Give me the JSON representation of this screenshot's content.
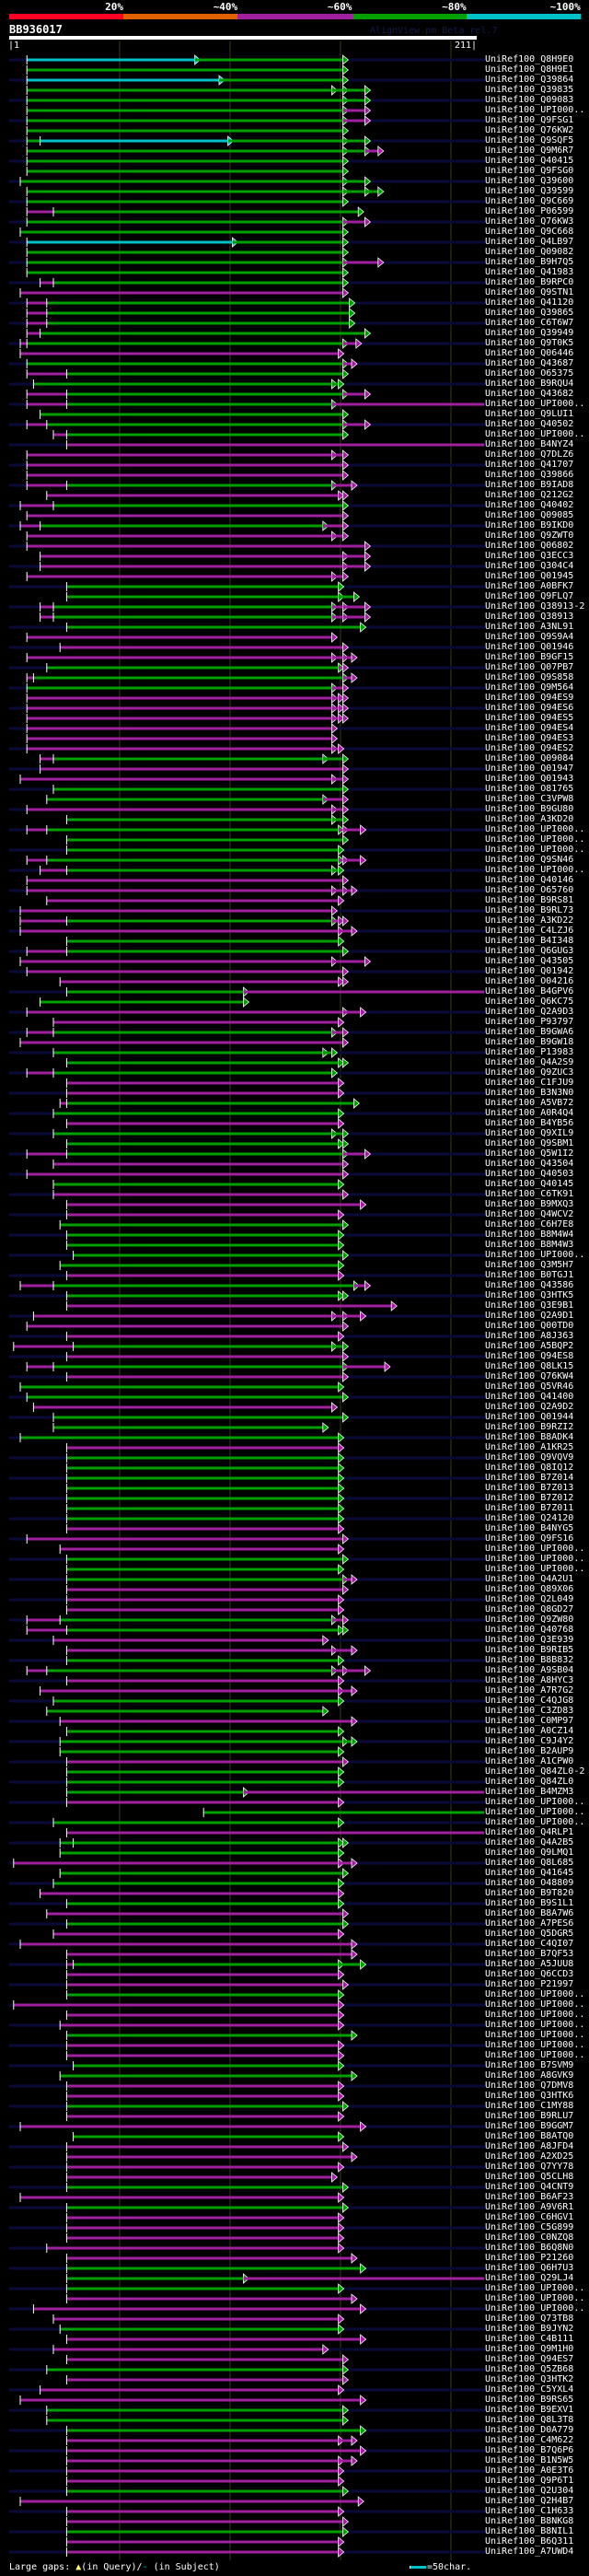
{
  "header": {
    "identity_scale": [
      {
        "label": "20%",
        "color": "#ff0022"
      },
      {
        "label": "~40%",
        "color": "#e06000"
      },
      {
        "label": "~60%",
        "color": "#a020a0"
      },
      {
        "label": "~80%",
        "color": "#00a000"
      },
      {
        "label": "~100%",
        "color": "#00c0c8"
      }
    ],
    "query_name": "BB936017",
    "watermark": "AlignView.pm Beta rel.7",
    "ruler_start": "|1",
    "ruler_end": "211|"
  },
  "query_length": 211,
  "colors": {
    "g": "#00a000",
    "m": "#a020a0",
    "c": "#00c0c8"
  },
  "rows": [
    {
      "label": "UniRef100_Q8H9E0",
      "hsp": "c9-85> g85-152>"
    },
    {
      "label": "UniRef100_Q8H9E1",
      "hsp": "g9-152>"
    },
    {
      "label": "UniRef100_Q39864",
      "hsp": "c9-96> g96-152>"
    },
    {
      "label": "UniRef100_Q39835",
      "hsp": "g9-147> g147-152> g152-162>"
    },
    {
      "label": "UniRef100_Q09083",
      "hsp": "g9-152> g152-162>"
    },
    {
      "label": "UniRef100_UPI000..",
      "hsp": "g9-152> m152-162>"
    },
    {
      "label": "UniRef100_Q9FSG1",
      "hsp": "g9-152> m152-162>"
    },
    {
      "label": "UniRef100_Q76KW2",
      "hsp": "g9-152>"
    },
    {
      "label": "UniRef100_Q9SQF5",
      "hsp": "g9-15 c15-100> g100-152> g152-162>"
    },
    {
      "label": "UniRef100_Q9M6R7",
      "hsp": "g9-152> g152-162> m162-168>"
    },
    {
      "label": "UniRef100_Q40415",
      "hsp": "g9-152>"
    },
    {
      "label": "UniRef100_Q9FSG0",
      "hsp": "g9-152>"
    },
    {
      "label": "UniRef100_Q39600",
      "hsp": "g6-152> g152-162>"
    },
    {
      "label": "UniRef100_Q39599",
      "hsp": "g9-152> g152-162> g162-168>"
    },
    {
      "label": "UniRef100_Q9C669",
      "hsp": "g9-152>"
    },
    {
      "label": "UniRef100_P06599",
      "hsp": "m9-21 g21-159>"
    },
    {
      "label": "UniRef100_Q76KW3",
      "hsp": "g9-152> m152-162>"
    },
    {
      "label": "UniRef100_Q9C668",
      "hsp": "g6-152>"
    },
    {
      "label": "UniRef100_Q4LB97",
      "hsp": "c9-102> g102-152>"
    },
    {
      "label": "UniRef100_Q09082",
      "hsp": "g9-152>"
    },
    {
      "label": "UniRef100_B9H7Q5",
      "hsp": "g9-152> m152-168>"
    },
    {
      "label": "UniRef100_Q41983",
      "hsp": "g9-152>"
    },
    {
      "label": "UniRef100_B9RPC0",
      "hsp": "m15-21 g21-152>"
    },
    {
      "label": "UniRef100_Q9STN1",
      "hsp": "m6-152>"
    },
    {
      "label": "UniRef100_Q41120",
      "hsp": "m9-18 g18-155>"
    },
    {
      "label": "UniRef100_Q39865",
      "hsp": "m9-18 g18-155>"
    },
    {
      "label": "UniRef100_C6T6W7",
      "hsp": "m9-18 g18-155>"
    },
    {
      "label": "UniRef100_Q39949",
      "hsp": "m9-15 g15-162>"
    },
    {
      "label": "UniRef100_Q9T0K5",
      "hsp": "m6-9 g9-152> m152-158>"
    },
    {
      "label": "UniRef100_Q06446",
      "hsp": "m6-150>"
    },
    {
      "label": "UniRef100_Q43687",
      "hsp": "g9-152> m152-156>"
    },
    {
      "label": "UniRef100_O65375",
      "hsp": "m9-27 g27-152>"
    },
    {
      "label": "UniRef100_B9RQU4",
      "hsp": "g12-147> g147-150>"
    },
    {
      "label": "UniRef100_Q43682",
      "hsp": "m9-27 g27-152> m152-162>"
    },
    {
      "label": "UniRef100_UPI000..",
      "hsp": "m9-27 g27-147> m147-216"
    },
    {
      "label": "UniRef100_Q9LUI1",
      "hsp": "g15-152>"
    },
    {
      "label": "UniRef100_Q40502",
      "hsp": "m9-18 g18-152> m152-162>"
    },
    {
      "label": "UniRef100_UPI000..",
      "hsp": "m21-27 g27-152>"
    },
    {
      "label": "UniRef100_B4NYZ4",
      "hsp": "m27-216"
    },
    {
      "label": "UniRef100_Q7DLZ6",
      "hsp": "m9-147> m147-152>"
    },
    {
      "label": "UniRef100_Q41707",
      "hsp": "m9-152>"
    },
    {
      "label": "UniRef100_Q39866",
      "hsp": "m9-152>"
    },
    {
      "label": "UniRef100_B9IAD8",
      "hsp": "m9-27 g27-147> m147-156>"
    },
    {
      "label": "UniRef100_Q212G2",
      "hsp": "m18-150> m150-152>"
    },
    {
      "label": "UniRef100_Q40402",
      "hsp": "m6-21 g21-152>"
    },
    {
      "label": "UniRef100_Q09085",
      "hsp": "m9-152>"
    },
    {
      "label": "UniRef100_B9IKD0",
      "hsp": "m6-15 g15-143> m143-152>"
    },
    {
      "label": "UniRef100_Q9ZWT0",
      "hsp": "m9-147> m147-152>"
    },
    {
      "label": "UniRef100_Q06802",
      "hsp": "m9-162>"
    },
    {
      "label": "UniRef100_Q3ECC3",
      "hsp": "m15-152> m152-162>"
    },
    {
      "label": "UniRef100_Q304C4",
      "hsp": "m15-152> m152-162>"
    },
    {
      "label": "UniRef100_Q01945",
      "hsp": "m9-147> m147-152>"
    },
    {
      "label": "UniRef100_A0BFK7",
      "hsp": "g27-150>"
    },
    {
      "label": "UniRef100_Q9FLQ7",
      "hsp": "g27-150> g150-157>"
    },
    {
      "label": "UniRef100_Q38913-2",
      "hsp": "m15-21 g21-147> m147-152> m152-162>"
    },
    {
      "label": "UniRef100_Q38913",
      "hsp": "m15-21 g21-147> m147-152> m152-162>"
    },
    {
      "label": "UniRef100_A3NL91",
      "hsp": "g27-160>"
    },
    {
      "label": "UniRef100_Q9S9A4",
      "hsp": "m9-147>"
    },
    {
      "label": "UniRef100_Q01946",
      "hsp": "m24-152>"
    },
    {
      "label": "UniRef100_B9GF15",
      "hsp": "m9-147> m147-152> m152-156>"
    },
    {
      "label": "UniRef100_Q07PB7",
      "hsp": "g18-150> m150-152>"
    },
    {
      "label": "UniRef100_Q9S858",
      "hsp": "m9-12 g12-152> m152-156>"
    },
    {
      "label": "UniRef100_Q9M564",
      "hsp": "g9-147> m147-152>"
    },
    {
      "label": "UniRef100_Q94ES9",
      "hsp": "m9-147> m147-150> m150-152>"
    },
    {
      "label": "UniRef100_Q94ES6",
      "hsp": "m9-147> m147-150> m150-152>"
    },
    {
      "label": "UniRef100_Q94ES5",
      "hsp": "m9-147> m147-150> m150-152>"
    },
    {
      "label": "UniRef100_Q94ES4",
      "hsp": "m9-147>"
    },
    {
      "label": "UniRef100_Q94ES3",
      "hsp": "m9-147>"
    },
    {
      "label": "UniRef100_Q94ES2",
      "hsp": "m9-147> m147-150>"
    },
    {
      "label": "UniRef100_Q09084",
      "hsp": "m15-21 g21-143> g143-152>"
    },
    {
      "label": "UniRef100_Q01947",
      "hsp": "m15-152>"
    },
    {
      "label": "UniRef100_Q01943",
      "hsp": "m6-147> m147-152>"
    },
    {
      "label": "UniRef100_O81765",
      "hsp": "g21-152>"
    },
    {
      "label": "UniRef100_C3VPW8",
      "hsp": "g18-143> m143-152>"
    },
    {
      "label": "UniRef100_B9GU80",
      "hsp": "m9-147> m147-152>"
    },
    {
      "label": "UniRef100_A3KD20",
      "hsp": "g27-147> g147-152>"
    },
    {
      "label": "UniRef100_UPI000..",
      "hsp": "m9-18 g18-150> m150-152> m152-160>"
    },
    {
      "label": "UniRef100_UPI000..",
      "hsp": "g27-152>"
    },
    {
      "label": "UniRef100_UPI000..",
      "hsp": "g27-150>"
    },
    {
      "label": "UniRef100_Q9SN46",
      "hsp": "m9-18 g18-150> m150-152> m152-160>"
    },
    {
      "label": "UniRef100_UPI000..",
      "hsp": "m15-27 g27-147> g147-150>"
    },
    {
      "label": "UniRef100_Q40146",
      "hsp": "m9-152>"
    },
    {
      "label": "UniRef100_O65760",
      "hsp": "m9-147> m147-152> m152-156>"
    },
    {
      "label": "UniRef100_B9RS81",
      "hsp": "m18-150>"
    },
    {
      "label": "UniRef100_B9RL73",
      "hsp": "m6-147>"
    },
    {
      "label": "UniRef100_A3KD22",
      "hsp": "m6-27 g27-147> m147-150> m150-152>"
    },
    {
      "label": "UniRef100_C4LZJ6",
      "hsp": "m6-150> m150-156>"
    },
    {
      "label": "UniRef100_B4I348",
      "hsp": "g27-150>"
    },
    {
      "label": "UniRef100_Q6GUG3",
      "hsp": "m9-27 g27-152>"
    },
    {
      "label": "UniRef100_Q43505",
      "hsp": "m6-147> m147-162>"
    },
    {
      "label": "UniRef100_Q01942",
      "hsp": "m9-152>"
    },
    {
      "label": "UniRef100_O04216",
      "hsp": "m24-150> m150-152>"
    },
    {
      "label": "UniRef100_B4GPV6",
      "hsp": "g27-107> m107-216"
    },
    {
      "label": "UniRef100_Q6KC75",
      "hsp": "g15-107>"
    },
    {
      "label": "UniRef100_Q2A9D3",
      "hsp": "m9-152> m152-160>"
    },
    {
      "label": "UniRef100_P93797",
      "hsp": "m21-150>"
    },
    {
      "label": "UniRef100_B9GWA6",
      "hsp": "m9-21 g21-147> m147-152>"
    },
    {
      "label": "UniRef100_B9GW18",
      "hsp": "m6-152>"
    },
    {
      "label": "UniRef100_P13983",
      "hsp": "g21-143> g143-147>"
    },
    {
      "label": "UniRef100_Q4A2S9",
      "hsp": "g27-150> g150-152>"
    },
    {
      "label": "UniRef100_Q9ZUC3",
      "hsp": "m9-21 g21-147>"
    },
    {
      "label": "UniRef100_C1FJU9",
      "hsp": "m27-150>"
    },
    {
      "label": "UniRef100_B3N3N0",
      "hsp": "m27-150>"
    },
    {
      "label": "UniRef100_A5VB72",
      "hsp": "m24-27 g27-157>"
    },
    {
      "label": "UniRef100_A0R4Q4",
      "hsp": "g21-150>"
    },
    {
      "label": "UniRef100_B4YB56",
      "hsp": "m27-150>"
    },
    {
      "label": "UniRef100_Q9XIL9",
      "hsp": "g21-147> g147-152>"
    },
    {
      "label": "UniRef100_Q9SBM1",
      "hsp": "g27-150> g150-152>"
    },
    {
      "label": "UniRef100_Q5W1I2",
      "hsp": "m9-27 g27-152> m152-162>"
    },
    {
      "label": "UniRef100_Q43504",
      "hsp": "m21-152>"
    },
    {
      "label": "UniRef100_Q40503",
      "hsp": "m9-152>"
    },
    {
      "label": "UniRef100_Q40145",
      "hsp": "g21-150>"
    },
    {
      "label": "UniRef100_C6TK91",
      "hsp": "m21-152>"
    },
    {
      "label": "UniRef100_B9MXQ3",
      "hsp": "m27-160>"
    },
    {
      "label": "UniRef100_Q4WCV2",
      "hsp": "m27-150>"
    },
    {
      "label": "UniRef100_C6H7E8",
      "hsp": "g24-152>"
    },
    {
      "label": "UniRef100_B8M4W4",
      "hsp": "g27-150>"
    },
    {
      "label": "UniRef100_B8M4W3",
      "hsp": "g27-150>"
    },
    {
      "label": "UniRef100_UPI000..",
      "hsp": "g30-152>"
    },
    {
      "label": "UniRef100_Q3M5H7",
      "hsp": "g24-150>"
    },
    {
      "label": "UniRef100_B0TGJ1",
      "hsp": "m27-150>"
    },
    {
      "label": "UniRef100_Q43586",
      "hsp": "m6-21 g21-157> m157-162>"
    },
    {
      "label": "UniRef100_Q3HTK5",
      "hsp": "g27-150> g150-152>"
    },
    {
      "label": "UniRef100_Q3E9B1",
      "hsp": "m27-174>"
    },
    {
      "label": "UniRef100_Q2A9D1",
      "hsp": "m12-147> m147-152> m152-160>"
    },
    {
      "label": "UniRef100_Q00TD0",
      "hsp": "m9-152>"
    },
    {
      "label": "UniRef100_A8J363",
      "hsp": "m27-150>"
    },
    {
      "label": "UniRef100_A5BQP2",
      "hsp": "m3-30 g30-147> g147-152>"
    },
    {
      "label": "UniRef100_Q94ES8",
      "hsp": "m27-152>"
    },
    {
      "label": "UniRef100_Q8LK15",
      "hsp": "m9-21 g21-152> m152-171>"
    },
    {
      "label": "UniRef100_Q76KW4",
      "hsp": "m27-152>"
    },
    {
      "label": "UniRef100_Q5VR46",
      "hsp": "g6-150>"
    },
    {
      "label": "UniRef100_Q41400",
      "hsp": "g9-152>"
    },
    {
      "label": "UniRef100_Q2A9D2",
      "hsp": "m12-147>"
    },
    {
      "label": "UniRef100_Q01944",
      "hsp": "g21-152>"
    },
    {
      "label": "UniRef100_B9RZI2",
      "hsp": "g21-143>"
    },
    {
      "label": "UniRef100_B8ADK4",
      "hsp": "g6-150>"
    },
    {
      "label": "UniRef100_A1KR25",
      "hsp": "m27-150>"
    },
    {
      "label": "UniRef100_Q9VQV9",
      "hsp": "g27-150>"
    },
    {
      "label": "UniRef100_Q8IQ12",
      "hsp": "g27-150>"
    },
    {
      "label": "UniRef100_B7Z014",
      "hsp": "g27-150>"
    },
    {
      "label": "UniRef100_B7Z013",
      "hsp": "g27-150>"
    },
    {
      "label": "UniRef100_B7Z012",
      "hsp": "g27-150>"
    },
    {
      "label": "UniRef100_B7Z011",
      "hsp": "g27-150>"
    },
    {
      "label": "UniRef100_Q24120",
      "hsp": "g27-150>"
    },
    {
      "label": "UniRef100_B4NYG5",
      "hsp": "m27-150>"
    },
    {
      "label": "UniRef100_Q9FS16",
      "hsp": "m9-152>"
    },
    {
      "label": "UniRef100_UPI000..",
      "hsp": "m24-150>"
    },
    {
      "label": "UniRef100_UPI000..",
      "hsp": "g27-152>"
    },
    {
      "label": "UniRef100_UPI000..",
      "hsp": "g27-150>"
    },
    {
      "label": "UniRef100_Q4A2U1",
      "hsp": "g27-152> m152-156>"
    },
    {
      "label": "UniRef100_Q89X06",
      "hsp": "m27-152>"
    },
    {
      "label": "UniRef100_Q2L049",
      "hsp": "m27-150>"
    },
    {
      "label": "UniRef100_Q8GD27",
      "hsp": "m27-150>"
    },
    {
      "label": "UniRef100_Q9ZW80",
      "hsp": "m9-24 g24-147> m147-152>"
    },
    {
      "label": "UniRef100_Q40768",
      "hsp": "m9-27 g27-150> g150-152>"
    },
    {
      "label": "UniRef100_Q3E939",
      "hsp": "m21-143>"
    },
    {
      "label": "UniRef100_B9RIB5",
      "hsp": "m27-147> m147-156>"
    },
    {
      "label": "UniRef100_B8B832",
      "hsp": "g27-150>"
    },
    {
      "label": "UniRef100_A9SB04",
      "hsp": "m9-18 g18-147> m147-152> m152-162>"
    },
    {
      "label": "UniRef100_A8HYC3",
      "hsp": "m27-150>"
    },
    {
      "label": "UniRef100_A7R7G2",
      "hsp": "m15-150> m150-156>"
    },
    {
      "label": "UniRef100_C4QJG8",
      "hsp": "g21-150>"
    },
    {
      "label": "UniRef100_C3ZD83",
      "hsp": "g18-143>"
    },
    {
      "label": "UniRef100_C0MP97",
      "hsp": "m24-156>"
    },
    {
      "label": "UniRef100_A0CZ14",
      "hsp": "g27-150>"
    },
    {
      "label": "UniRef100_C9J4Y2",
      "hsp": "g24-152> g152-156>"
    },
    {
      "label": "UniRef100_B2AUP9",
      "hsp": "g24-150>"
    },
    {
      "label": "UniRef100_A1CPW0",
      "hsp": "m27-152>"
    },
    {
      "label": "UniRef100_Q84ZL0-2",
      "hsp": "g27-150>"
    },
    {
      "label": "UniRef100_Q84ZL0",
      "hsp": "g27-150>"
    },
    {
      "label": "UniRef100_B4MZM3",
      "hsp": "g27-107> m107-216"
    },
    {
      "label": "UniRef100_UPI000..",
      "hsp": "m27-150>"
    },
    {
      "label": "UniRef100_UPI000..",
      "hsp": "g89-216"
    },
    {
      "label": "UniRef100_UPI000..",
      "hsp": "g21-150>"
    },
    {
      "label": "UniRef100_Q4RLP1",
      "hsp": "m27-216"
    },
    {
      "label": "UniRef100_Q4A2B5",
      "hsp": "g24-30 g30-150> g150-152>"
    },
    {
      "label": "UniRef100_Q9LMQ1",
      "hsp": "g24-150>"
    },
    {
      "label": "UniRef100_Q8L685",
      "hsp": "m3-150> m150-156>"
    },
    {
      "label": "UniRef100_Q41645",
      "hsp": "g24-152>"
    },
    {
      "label": "UniRef100_O48809",
      "hsp": "g21-150>"
    },
    {
      "label": "UniRef100_B9T820",
      "hsp": "m15-150>"
    },
    {
      "label": "UniRef100_B9S1L1",
      "hsp": "g27-150>"
    },
    {
      "label": "UniRef100_B8A7W6",
      "hsp": "m18-152>"
    },
    {
      "label": "UniRef100_A7PES6",
      "hsp": "g27-152>"
    },
    {
      "label": "UniRef100_Q5DGR5",
      "hsp": "m21-150>"
    },
    {
      "label": "UniRef100_C4QI07",
      "hsp": "m6-156>"
    },
    {
      "label": "UniRef100_B7QF53",
      "hsp": "m27-156>"
    },
    {
      "label": "UniRef100_A5JUU8",
      "hsp": "m27-30 g30-150> g150-160>"
    },
    {
      "label": "UniRef100_Q6CCD3",
      "hsp": "m27-150>"
    },
    {
      "label": "UniRef100_P21997",
      "hsp": "m27-152>"
    },
    {
      "label": "UniRef100_UPI000..",
      "hsp": "g27-150>"
    },
    {
      "label": "UniRef100_UPI000..",
      "hsp": "m3-150>"
    },
    {
      "label": "UniRef100_UPI000..",
      "hsp": "m27-150>"
    },
    {
      "label": "UniRef100_UPI000..",
      "hsp": "m24-150>"
    },
    {
      "label": "UniRef100_UPI000..",
      "hsp": "g27-156>"
    },
    {
      "label": "UniRef100_UPI000..",
      "hsp": "m27-150>"
    },
    {
      "label": "UniRef100_UPI000..",
      "hsp": "m27-150>"
    },
    {
      "label": "UniRef100_B7SVM9",
      "hsp": "g30-150>"
    },
    {
      "label": "UniRef100_A8GVK9",
      "hsp": "g24-156>"
    },
    {
      "label": "UniRef100_Q7DMV8",
      "hsp": "m27-150>"
    },
    {
      "label": "UniRef100_Q3HTK6",
      "hsp": "m27-150>"
    },
    {
      "label": "UniRef100_C1MY88",
      "hsp": "g27-152>"
    },
    {
      "label": "UniRef100_B9RLU7",
      "hsp": "m27-150>"
    },
    {
      "label": "UniRef100_B9GGM7",
      "hsp": "m6-160>"
    },
    {
      "label": "UniRef100_B8ATQ0",
      "hsp": "g30-150>"
    },
    {
      "label": "UniRef100_A8JFD4",
      "hsp": "m27-152>"
    },
    {
      "label": "UniRef100_A2XD25",
      "hsp": "m27-156>"
    },
    {
      "label": "UniRef100_Q7YY78",
      "hsp": "m27-150>"
    },
    {
      "label": "UniRef100_Q5CLH8",
      "hsp": "m27-147>"
    },
    {
      "label": "UniRef100_Q4CNT9",
      "hsp": "g27-152>"
    },
    {
      "label": "UniRef100_B6AF23",
      "hsp": "m6-150>"
    },
    {
      "label": "UniRef100_A9V6R1",
      "hsp": "g27-152>"
    },
    {
      "label": "UniRef100_C6HGV1",
      "hsp": "m27-150>"
    },
    {
      "label": "UniRef100_C5G899",
      "hsp": "m27-150>"
    },
    {
      "label": "UniRef100_C0NZQ8",
      "hsp": "m27-150>"
    },
    {
      "label": "UniRef100_B6Q8N0",
      "hsp": "m18-150>"
    },
    {
      "label": "UniRef100_P21260",
      "hsp": "m27-156>"
    },
    {
      "label": "UniRef100_Q6H7U3",
      "hsp": "g27-160>"
    },
    {
      "label": "UniRef100_Q29LJ4",
      "hsp": "g27-107> m107-216"
    },
    {
      "label": "UniRef100_UPI000..",
      "hsp": "g27-150>"
    },
    {
      "label": "UniRef100_UPI000..",
      "hsp": "m27-156>"
    },
    {
      "label": "UniRef100_UPI000..",
      "hsp": "m12-160>"
    },
    {
      "label": "UniRef100_Q73TB8",
      "hsp": "m21-150>"
    },
    {
      "label": "UniRef100_B9JYN2",
      "hsp": "g24-150>"
    },
    {
      "label": "UniRef100_C4B111",
      "hsp": "m27-160>"
    },
    {
      "label": "UniRef100_Q9M1H0",
      "hsp": "m21-143>"
    },
    {
      "label": "UniRef100_Q94ES7",
      "hsp": "m27-152>"
    },
    {
      "label": "UniRef100_Q5ZB68",
      "hsp": "g18-152>"
    },
    {
      "label": "UniRef100_Q3HTK2",
      "hsp": "m27-152>"
    },
    {
      "label": "UniRef100_C5YXL4",
      "hsp": "m15-150>"
    },
    {
      "label": "UniRef100_B9RS65",
      "hsp": "m6-160>"
    },
    {
      "label": "UniRef100_B9EXV1",
      "hsp": "g18-152>"
    },
    {
      "label": "UniRef100_Q8L3T8",
      "hsp": "g18-152>"
    },
    {
      "label": "UniRef100_D0A779",
      "hsp": "g27-160>"
    },
    {
      "label": "UniRef100_C4M622",
      "hsp": "m27-150> m150-156>"
    },
    {
      "label": "UniRef100_B7Q6P6",
      "hsp": "m27-160>"
    },
    {
      "label": "UniRef100_B1N5W5",
      "hsp": "m27-150> m150-156>"
    },
    {
      "label": "UniRef100_A0E3T6",
      "hsp": "m27-150>"
    },
    {
      "label": "UniRef100_Q9P6T1",
      "hsp": "m27-150>"
    },
    {
      "label": "UniRef100_Q2U304",
      "hsp": "g27-152>"
    },
    {
      "label": "UniRef100_Q2H4B7",
      "hsp": "m6-159>"
    },
    {
      "label": "UniRef100_C1H633",
      "hsp": "m27-150>"
    },
    {
      "label": "UniRef100_B8NKG8",
      "hsp": "m27-152>"
    },
    {
      "label": "UniRef100_B8NIL1",
      "hsp": "g27-152>"
    },
    {
      "label": "UniRef100_B6Q311",
      "hsp": "m27-150>"
    },
    {
      "label": "UniRef100_A7UWD4",
      "hsp": "m27-150>"
    }
  ],
  "legend": {
    "large_gaps": "Large gaps:",
    "query_marker": "▲",
    "in_query": "(in Query)/",
    "subject_marker": "-",
    "in_subject": " (in Subject)",
    "scale_text": "=50char."
  }
}
